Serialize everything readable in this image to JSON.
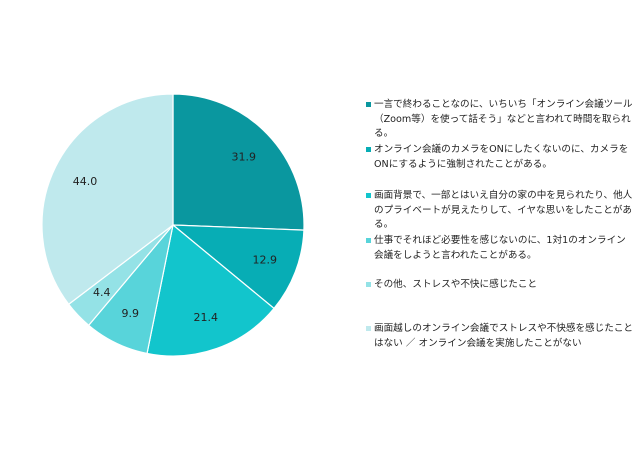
{
  "chart_data": {
    "type": "pie",
    "slices": [
      {
        "label": "一言で終わることなのに、いちいち「オンライン会議ツール（Zoom等）を使って話そう」などと言われて時間を取られる。",
        "value": 31.9,
        "color": "#0a979f"
      },
      {
        "label": "オンライン会議のカメラをONにしたくないのに、カメラをONにするように強制されたことがある。",
        "value": 12.9,
        "color": "#07adb5"
      },
      {
        "label": "画面背景で、一部とはいえ自分の家の中を見られたり、他人のプライベートが見えたりして、イヤな思いをしたことがある。",
        "value": 21.4,
        "color": "#12c5cc"
      },
      {
        "label": "仕事でそれほど必要性を感じないのに、1対1のオンライン会議をしようと言われたことがある。",
        "value": 9.9,
        "color": "#58d4da"
      },
      {
        "label": "その他、ストレスや不快に感じたこと",
        "value": 4.4,
        "color": "#94e2e6"
      },
      {
        "label": "画面越しのオンライン会議でストレスや不快感を感じたことはない ／ オンライン会議を実施したことがない",
        "value": 44.0,
        "color": "#bfe9ed"
      }
    ]
  }
}
